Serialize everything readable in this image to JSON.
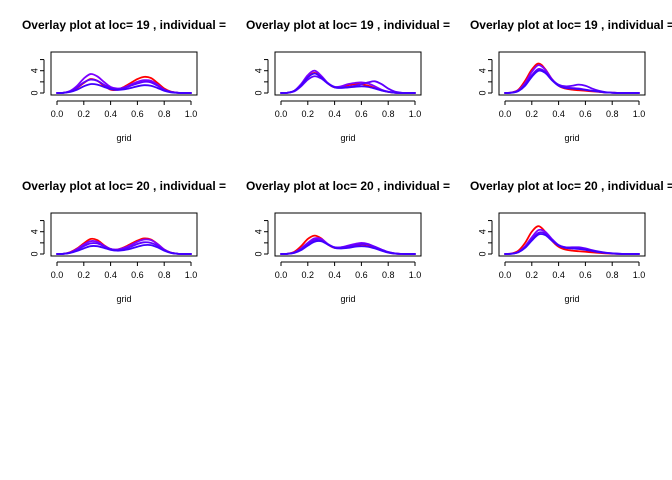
{
  "chart_data": [
    {
      "type": "line",
      "title": "Overlay plot at loc= 19 , individual =",
      "xlabel": "grid",
      "ylabel": "",
      "xlim": [
        0,
        1
      ],
      "ylim": [
        0,
        7
      ],
      "xticks": [
        "0.0",
        "0.2",
        "0.4",
        "0.6",
        "0.8",
        "1.0"
      ],
      "yticks": [
        "0",
        "4"
      ],
      "x": [
        0,
        0.05,
        0.1,
        0.15,
        0.2,
        0.25,
        0.3,
        0.35,
        0.4,
        0.45,
        0.5,
        0.55,
        0.6,
        0.65,
        0.7,
        0.75,
        0.8,
        0.85,
        0.9,
        0.95,
        1.0
      ],
      "series": [
        {
          "color": "#ff0000",
          "values": [
            0.0,
            0.05,
            0.3,
            0.9,
            1.8,
            2.5,
            2.2,
            1.3,
            0.6,
            0.6,
            1.1,
            1.8,
            2.5,
            2.9,
            2.7,
            1.8,
            0.8,
            0.25,
            0.05,
            0.0,
            0.0
          ]
        },
        {
          "color": "#7f00ff",
          "values": [
            0.0,
            0.05,
            0.4,
            1.3,
            2.6,
            3.4,
            3.0,
            2.0,
            1.1,
            0.8,
            1.0,
            1.5,
            2.0,
            2.3,
            2.2,
            1.5,
            0.6,
            0.2,
            0.05,
            0.0,
            0.0
          ]
        },
        {
          "color": "#5f00ff",
          "values": [
            0.0,
            0.05,
            0.3,
            1.0,
            1.9,
            2.4,
            2.2,
            1.5,
            0.9,
            0.7,
            0.9,
            1.3,
            1.7,
            2.0,
            1.9,
            1.3,
            0.6,
            0.2,
            0.05,
            0.0,
            0.0
          ]
        },
        {
          "color": "#3f00ff",
          "values": [
            0.0,
            0.03,
            0.2,
            0.6,
            1.2,
            1.6,
            1.5,
            1.1,
            0.7,
            0.55,
            0.65,
            0.9,
            1.2,
            1.4,
            1.3,
            0.9,
            0.4,
            0.12,
            0.03,
            0.0,
            0.0
          ]
        }
      ]
    },
    {
      "type": "line",
      "title": "Overlay plot at loc= 19 , individual =",
      "xlabel": "grid",
      "ylabel": "",
      "xlim": [
        0,
        1
      ],
      "ylim": [
        0,
        7
      ],
      "xticks": [
        "0.0",
        "0.2",
        "0.4",
        "0.6",
        "0.8",
        "1.0"
      ],
      "yticks": [
        "0",
        "4"
      ],
      "x": [
        0,
        0.05,
        0.1,
        0.15,
        0.2,
        0.25,
        0.3,
        0.35,
        0.4,
        0.45,
        0.5,
        0.55,
        0.6,
        0.65,
        0.7,
        0.75,
        0.8,
        0.85,
        0.9,
        0.95,
        1.0
      ],
      "series": [
        {
          "color": "#ff0000",
          "values": [
            0.0,
            0.05,
            0.4,
            1.5,
            2.9,
            3.6,
            2.9,
            1.7,
            1.0,
            1.1,
            1.4,
            1.6,
            1.6,
            1.3,
            0.9,
            0.5,
            0.2,
            0.05,
            0.0,
            0.0,
            0.0
          ]
        },
        {
          "color": "#7f00ff",
          "values": [
            0.0,
            0.05,
            0.4,
            1.6,
            3.2,
            4.0,
            3.1,
            1.8,
            1.1,
            1.2,
            1.6,
            1.8,
            1.9,
            1.7,
            1.2,
            0.6,
            0.25,
            0.05,
            0.0,
            0.0,
            0.0
          ]
        },
        {
          "color": "#5f00ff",
          "values": [
            0.0,
            0.05,
            0.3,
            1.2,
            2.4,
            3.0,
            2.6,
            1.7,
            1.1,
            1.0,
            1.1,
            1.3,
            1.6,
            1.9,
            2.1,
            1.6,
            0.8,
            0.25,
            0.05,
            0.0,
            0.0
          ]
        },
        {
          "color": "#3f00ff",
          "values": [
            0.0,
            0.05,
            0.4,
            1.4,
            2.8,
            3.5,
            2.8,
            1.7,
            1.0,
            0.9,
            1.0,
            1.1,
            1.2,
            1.1,
            0.8,
            0.45,
            0.2,
            0.05,
            0.0,
            0.0,
            0.0
          ]
        }
      ]
    },
    {
      "type": "line",
      "title": "Overlay plot at loc= 19 , individual =",
      "xlabel": "grid",
      "ylabel": "",
      "xlim": [
        0,
        1
      ],
      "ylim": [
        0,
        7
      ],
      "xticks": [
        "0.0",
        "0.2",
        "0.4",
        "0.6",
        "0.8",
        "1.0"
      ],
      "yticks": [
        "0",
        "4"
      ],
      "x": [
        0,
        0.05,
        0.1,
        0.15,
        0.2,
        0.25,
        0.3,
        0.35,
        0.4,
        0.45,
        0.5,
        0.55,
        0.6,
        0.65,
        0.7,
        0.75,
        0.8,
        0.85,
        0.9,
        0.95,
        1.0
      ],
      "series": [
        {
          "color": "#ff0000",
          "values": [
            0.0,
            0.1,
            0.6,
            2.2,
            4.2,
            5.3,
            4.3,
            2.5,
            1.3,
            0.8,
            0.6,
            0.5,
            0.4,
            0.3,
            0.2,
            0.1,
            0.05,
            0.0,
            0.0,
            0.0,
            0.0
          ]
        },
        {
          "color": "#7f00ff",
          "values": [
            0.0,
            0.08,
            0.5,
            1.8,
            3.8,
            5.0,
            4.2,
            2.5,
            1.4,
            1.0,
            0.9,
            0.8,
            0.6,
            0.4,
            0.25,
            0.1,
            0.05,
            0.0,
            0.0,
            0.0,
            0.0
          ]
        },
        {
          "color": "#5f00ff",
          "values": [
            0.0,
            0.06,
            0.4,
            1.5,
            3.2,
            4.3,
            3.8,
            2.4,
            1.5,
            1.2,
            1.3,
            1.5,
            1.3,
            0.8,
            0.4,
            0.15,
            0.05,
            0.0,
            0.0,
            0.0,
            0.0
          ]
        },
        {
          "color": "#3f00ff",
          "values": [
            0.0,
            0.05,
            0.35,
            1.3,
            2.9,
            4.0,
            3.6,
            2.3,
            1.3,
            0.9,
            0.8,
            0.7,
            0.55,
            0.4,
            0.25,
            0.1,
            0.05,
            0.0,
            0.0,
            0.0,
            0.0
          ]
        }
      ]
    },
    {
      "type": "line",
      "title": "Overlay plot at loc= 20 , individual =",
      "xlabel": "grid",
      "ylabel": "",
      "xlim": [
        0,
        1
      ],
      "ylim": [
        0,
        7
      ],
      "xticks": [
        "0.0",
        "0.2",
        "0.4",
        "0.6",
        "0.8",
        "1.0"
      ],
      "yticks": [
        "0",
        "4"
      ],
      "x": [
        0,
        0.05,
        0.1,
        0.15,
        0.2,
        0.25,
        0.3,
        0.35,
        0.4,
        0.45,
        0.5,
        0.55,
        0.6,
        0.65,
        0.7,
        0.75,
        0.8,
        0.85,
        0.9,
        0.95,
        1.0
      ],
      "series": [
        {
          "color": "#ff0000",
          "values": [
            0.0,
            0.05,
            0.35,
            1.0,
            1.9,
            2.7,
            2.5,
            1.6,
            0.9,
            0.8,
            1.2,
            1.8,
            2.4,
            2.8,
            2.6,
            1.8,
            0.8,
            0.25,
            0.05,
            0.0,
            0.0
          ]
        },
        {
          "color": "#7f00ff",
          "values": [
            0.0,
            0.05,
            0.3,
            0.9,
            1.7,
            2.3,
            2.2,
            1.5,
            0.9,
            0.8,
            1.1,
            1.6,
            2.2,
            2.6,
            2.5,
            1.8,
            0.8,
            0.25,
            0.05,
            0.0,
            0.0
          ]
        },
        {
          "color": "#5f00ff",
          "values": [
            0.0,
            0.04,
            0.25,
            0.75,
            1.4,
            1.9,
            1.9,
            1.4,
            0.9,
            0.7,
            0.9,
            1.3,
            1.8,
            2.1,
            2.0,
            1.5,
            0.7,
            0.2,
            0.05,
            0.0,
            0.0
          ]
        },
        {
          "color": "#3f00ff",
          "values": [
            0.0,
            0.03,
            0.2,
            0.55,
            1.0,
            1.4,
            1.4,
            1.1,
            0.75,
            0.6,
            0.7,
            0.95,
            1.3,
            1.6,
            1.6,
            1.2,
            0.6,
            0.2,
            0.05,
            0.0,
            0.0
          ]
        }
      ]
    },
    {
      "type": "line",
      "title": "Overlay plot at loc= 20 , individual =",
      "xlabel": "grid",
      "ylabel": "",
      "xlim": [
        0,
        1
      ],
      "ylim": [
        0,
        7
      ],
      "xticks": [
        "0.0",
        "0.2",
        "0.4",
        "0.6",
        "0.8",
        "1.0"
      ],
      "yticks": [
        "0",
        "4"
      ],
      "x": [
        0,
        0.05,
        0.1,
        0.15,
        0.2,
        0.25,
        0.3,
        0.35,
        0.4,
        0.45,
        0.5,
        0.55,
        0.6,
        0.65,
        0.7,
        0.75,
        0.8,
        0.85,
        0.9,
        0.95,
        1.0
      ],
      "series": [
        {
          "color": "#ff0000",
          "values": [
            0.0,
            0.05,
            0.4,
            1.4,
            2.7,
            3.3,
            2.8,
            1.7,
            1.1,
            1.1,
            1.3,
            1.5,
            1.7,
            1.6,
            1.2,
            0.7,
            0.3,
            0.08,
            0.02,
            0.0,
            0.0
          ]
        },
        {
          "color": "#7f00ff",
          "values": [
            0.0,
            0.04,
            0.3,
            1.0,
            2.0,
            2.8,
            2.7,
            1.8,
            1.2,
            1.2,
            1.5,
            1.8,
            2.0,
            1.8,
            1.3,
            0.8,
            0.35,
            0.1,
            0.02,
            0.0,
            0.0
          ]
        },
        {
          "color": "#5f00ff",
          "values": [
            0.0,
            0.04,
            0.25,
            0.9,
            1.8,
            2.5,
            2.4,
            1.7,
            1.2,
            1.2,
            1.4,
            1.6,
            1.8,
            1.7,
            1.3,
            0.8,
            0.35,
            0.1,
            0.02,
            0.0,
            0.0
          ]
        },
        {
          "color": "#3f00ff",
          "values": [
            0.0,
            0.03,
            0.2,
            0.7,
            1.5,
            2.2,
            2.3,
            1.7,
            1.1,
            1.0,
            1.1,
            1.3,
            1.4,
            1.3,
            1.0,
            0.6,
            0.25,
            0.07,
            0.02,
            0.0,
            0.0
          ]
        }
      ]
    },
    {
      "type": "line",
      "title": "Overlay plot at loc= 20 , individual =",
      "xlabel": "grid",
      "ylabel": "",
      "xlim": [
        0,
        1
      ],
      "ylim": [
        0,
        7
      ],
      "xticks": [
        "0.0",
        "0.2",
        "0.4",
        "0.6",
        "0.8",
        "1.0"
      ],
      "yticks": [
        "0",
        "4"
      ],
      "x": [
        0,
        0.05,
        0.1,
        0.15,
        0.2,
        0.25,
        0.3,
        0.35,
        0.4,
        0.45,
        0.5,
        0.55,
        0.6,
        0.65,
        0.7,
        0.75,
        0.8,
        0.85,
        0.9,
        0.95,
        1.0
      ],
      "series": [
        {
          "color": "#ff0000",
          "values": [
            0.0,
            0.1,
            0.6,
            2.0,
            4.0,
            5.0,
            4.0,
            2.4,
            1.3,
            0.8,
            0.6,
            0.5,
            0.4,
            0.3,
            0.2,
            0.12,
            0.06,
            0.02,
            0.0,
            0.0,
            0.0
          ]
        },
        {
          "color": "#7f00ff",
          "values": [
            0.0,
            0.06,
            0.4,
            1.4,
            3.0,
            4.3,
            4.0,
            2.7,
            1.6,
            1.2,
            1.1,
            1.0,
            0.8,
            0.55,
            0.35,
            0.2,
            0.1,
            0.03,
            0.0,
            0.0,
            0.0
          ]
        },
        {
          "color": "#5f00ff",
          "values": [
            0.0,
            0.05,
            0.35,
            1.2,
            2.6,
            3.8,
            3.7,
            2.6,
            1.6,
            1.2,
            1.2,
            1.2,
            1.0,
            0.7,
            0.45,
            0.25,
            0.12,
            0.04,
            0.0,
            0.0,
            0.0
          ]
        },
        {
          "color": "#3f00ff",
          "values": [
            0.0,
            0.05,
            0.3,
            1.1,
            2.4,
            3.5,
            3.4,
            2.4,
            1.5,
            1.1,
            1.0,
            0.9,
            0.75,
            0.55,
            0.35,
            0.2,
            0.1,
            0.03,
            0.0,
            0.0,
            0.0
          ]
        }
      ]
    }
  ]
}
